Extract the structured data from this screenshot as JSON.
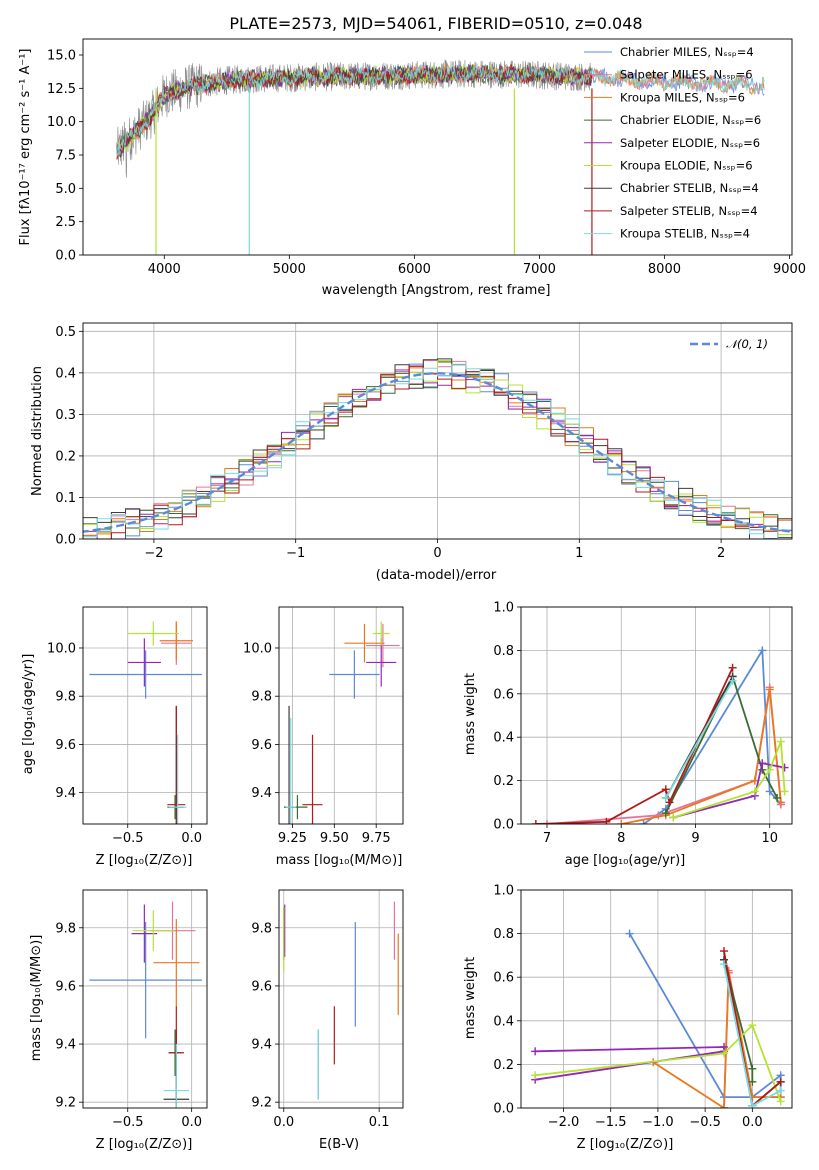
{
  "colors": {
    "chabrier_miles": "#5b8bd6",
    "salpeter_miles": "#e7739c",
    "kroupa_miles": "#e8781f",
    "chabrier_elodie": "#3a6b30",
    "salpeter_elodie": "#9527b8",
    "kroupa_elodie": "#b6e234",
    "chabrier_stelib": "#3c3c3c",
    "salpeter_stelib": "#b21a1a",
    "kroupa_stelib": "#79dbe0",
    "spectrum": "#888888",
    "gauss": "#5b8bd6",
    "grid": "#b0b0b0"
  },
  "chart_data": [
    {
      "id": "spectrum",
      "type": "line",
      "title": "PLATE=2573, MJD=54061, FIBERID=0510, z=0.048",
      "xlabel": "wavelength [Angstrom, rest frame]",
      "ylabel": "Flux [fλ10⁻¹⁷ erg cm⁻² s⁻¹ A⁻¹]",
      "xlim": [
        3350,
        9020
      ],
      "ylim": [
        0,
        16.2
      ],
      "xticks": [
        "4000",
        "5000",
        "6000",
        "7000",
        "8000",
        "9000"
      ],
      "yticks": [
        "0.0",
        "2.5",
        "5.0",
        "7.5",
        "10.0",
        "12.5",
        "15.0"
      ],
      "grid": false,
      "legend_position": "upper right",
      "legend": [
        "Chabrier MILES, Nₛₛₚ=4",
        "Salpeter MILES, Nₛₛₚ=6",
        "Kroupa MILES, Nₛₛₚ=6",
        "Chabrier ELODIE, Nₛₛₚ=6",
        "Salpeter ELODIE, Nₛₛₚ=6",
        "Kroupa ELODIE, Nₛₛₚ=6",
        "Chabrier STELIB, Nₛₛₚ=4",
        "Salpeter STELIB, Nₛₛₚ=4",
        "Kroupa STELIB, Nₛₛₚ=4"
      ],
      "continuum": {
        "x": [
          3620,
          3700,
          3800,
          3900,
          4000,
          4100,
          4200,
          4300,
          4500,
          4700,
          5000,
          5500,
          6000,
          6500,
          7000,
          7500,
          7800,
          8000,
          8400,
          8800
        ],
        "y": [
          7.8,
          8.5,
          9.5,
          10.5,
          12.0,
          12.3,
          12.6,
          12.8,
          13.1,
          13.2,
          13.3,
          13.4,
          13.5,
          13.6,
          13.5,
          13.3,
          13.1,
          13.0,
          12.9,
          12.7
        ]
      },
      "dips": [
        {
          "x": 3934,
          "y": 0.0
        },
        {
          "x": 4680,
          "y": 0.0
        },
        {
          "x": 6800,
          "y": 0.0
        },
        {
          "x": 7420,
          "y": 0.0
        }
      ]
    },
    {
      "id": "residuals",
      "type": "line",
      "xlabel": "(data-model)/error",
      "ylabel": "Normed distribution",
      "xlim": [
        -2.5,
        2.5
      ],
      "ylim": [
        0,
        0.52
      ],
      "xticks": [
        "−2",
        "−1",
        "0",
        "1",
        "2"
      ],
      "yticks": [
        "0.0",
        "0.1",
        "0.2",
        "0.3",
        "0.4",
        "0.5"
      ],
      "grid": true,
      "legend_position": "upper right",
      "legend": [
        "𝒩(0, 1)"
      ],
      "bin_width": 0.1
    },
    {
      "id": "z_age",
      "type": "scatter",
      "xlabel": "Z [log₁₀(Z/Z⊙)]",
      "ylabel": "age  [log₁₀(age/yr)]",
      "xlim": [
        -0.85,
        0.12
      ],
      "ylim": [
        9.27,
        10.17
      ],
      "xticks": [
        "−0.5",
        "0.0"
      ],
      "yticks": [
        "9.4",
        "9.6",
        "9.8",
        "10.0"
      ],
      "grid": true,
      "points": [
        {
          "s": "chabrier_miles",
          "x": -0.36,
          "y": 9.89,
          "xe": 0.44,
          "ye": 0.1
        },
        {
          "s": "salpeter_miles",
          "x": -0.12,
          "y": 10.02,
          "xe": 0.12,
          "ye": 0.09
        },
        {
          "s": "kroupa_miles",
          "x": -0.12,
          "y": 10.03,
          "xe": 0.13,
          "ye": 0.08
        },
        {
          "s": "chabrier_elodie",
          "x": -0.13,
          "y": 9.34,
          "xe": 0.06,
          "ye": 0.05
        },
        {
          "s": "salpeter_elodie",
          "x": -0.37,
          "y": 9.94,
          "xe": 0.13,
          "ye": 0.1
        },
        {
          "s": "kroupa_elodie",
          "x": -0.3,
          "y": 10.06,
          "xe": 0.2,
          "ye": 0.05
        },
        {
          "s": "chabrier_stelib",
          "x": -0.12,
          "y": 9.34,
          "xe": 0.06,
          "ye": 0.42
        },
        {
          "s": "salpeter_stelib",
          "x": -0.12,
          "y": 9.35,
          "xe": 0.07,
          "ye": 0.41
        },
        {
          "s": "kroupa_stelib",
          "x": -0.11,
          "y": 9.34,
          "xe": 0.07,
          "ye": 0.3
        }
      ]
    },
    {
      "id": "mass_age",
      "type": "scatter",
      "xlabel": "mass [log₁₀(M/M⊙)]",
      "ylabel": "",
      "xlim": [
        9.17,
        9.91
      ],
      "ylim": [
        9.27,
        10.17
      ],
      "xticks": [
        "9.25",
        "9.50",
        "9.75"
      ],
      "yticks": [
        "9.4",
        "9.6",
        "9.8",
        "10.0"
      ],
      "grid": true,
      "points": [
        {
          "s": "chabrier_miles",
          "x": 9.62,
          "y": 9.89,
          "xe": 0.15,
          "ye": 0.1
        },
        {
          "s": "salpeter_miles",
          "x": 9.79,
          "y": 10.01,
          "xe": 0.1,
          "ye": 0.09
        },
        {
          "s": "kroupa_miles",
          "x": 9.68,
          "y": 10.02,
          "xe": 0.12,
          "ye": 0.08
        },
        {
          "s": "chabrier_elodie",
          "x": 9.28,
          "y": 9.34,
          "xe": 0.06,
          "ye": 0.05
        },
        {
          "s": "salpeter_elodie",
          "x": 9.78,
          "y": 9.94,
          "xe": 0.09,
          "ye": 0.1
        },
        {
          "s": "kroupa_elodie",
          "x": 9.78,
          "y": 10.06,
          "xe": 0.05,
          "ye": 0.05
        },
        {
          "s": "chabrier_stelib",
          "x": 9.23,
          "y": 9.34,
          "xe": 0.03,
          "ye": 0.42
        },
        {
          "s": "salpeter_stelib",
          "x": 9.37,
          "y": 9.35,
          "xe": 0.06,
          "ye": 0.29
        },
        {
          "s": "kroupa_stelib",
          "x": 9.24,
          "y": 9.34,
          "xe": 0.03,
          "ye": 0.37
        }
      ]
    },
    {
      "id": "age_weight",
      "type": "line",
      "xlabel": "age  [log₁₀(age/yr)]",
      "ylabel": "mass weight",
      "xlim": [
        6.65,
        10.3
      ],
      "ylim": [
        0,
        1.0
      ],
      "xticks": [
        "7",
        "8",
        "9",
        "10"
      ],
      "yticks": [
        "0.0",
        "0.2",
        "0.4",
        "0.6",
        "0.8",
        "1.0"
      ],
      "grid": true,
      "series": [
        {
          "s": "chabrier_miles",
          "x": [
            8.3,
            8.6,
            9.9,
            10.0,
            10.15
          ],
          "y": [
            0.0,
            0.07,
            0.8,
            0.15,
            0.09
          ]
        },
        {
          "s": "salpeter_miles",
          "x": [
            7.0,
            8.5,
            9.8,
            10.0,
            10.15
          ],
          "y": [
            0.0,
            0.04,
            0.2,
            0.63,
            0.09
          ]
        },
        {
          "s": "kroupa_miles",
          "x": [
            8.0,
            8.6,
            9.8,
            10.0,
            10.15
          ],
          "y": [
            0.0,
            0.04,
            0.2,
            0.62,
            0.1
          ]
        },
        {
          "s": "chabrier_elodie",
          "x": [
            8.6,
            9.5,
            9.9,
            10.1
          ],
          "y": [
            0.05,
            0.68,
            0.25,
            0.12
          ]
        },
        {
          "s": "salpeter_elodie",
          "x": [
            8.7,
            9.8,
            9.9,
            10.2
          ],
          "y": [
            0.03,
            0.13,
            0.28,
            0.26
          ]
        },
        {
          "s": "kroupa_elodie",
          "x": [
            8.7,
            9.8,
            10.0,
            10.15,
            10.2
          ],
          "y": [
            0.03,
            0.15,
            0.25,
            0.38,
            0.15
          ]
        },
        {
          "s": "chabrier_stelib",
          "x": [
            8.6,
            9.5
          ],
          "y": [
            0.12,
            0.68
          ]
        },
        {
          "s": "salpeter_stelib",
          "x": [
            6.85,
            7.8,
            8.6,
            8.65,
            9.5
          ],
          "y": [
            0.0,
            0.01,
            0.16,
            0.1,
            0.72
          ]
        },
        {
          "s": "kroupa_stelib",
          "x": [
            8.6,
            9.5
          ],
          "y": [
            0.12,
            0.66
          ]
        }
      ]
    },
    {
      "id": "z_mass",
      "type": "scatter",
      "xlabel": "Z [log₁₀(Z/Z⊙)]",
      "ylabel": "mass [log₁₀(M/M⊙)]",
      "xlim": [
        -0.85,
        0.12
      ],
      "ylim": [
        9.18,
        9.93
      ],
      "xticks": [
        "−0.5",
        "0.0"
      ],
      "yticks": [
        "9.2",
        "9.4",
        "9.6",
        "9.8"
      ],
      "grid": true,
      "points": [
        {
          "s": "chabrier_miles",
          "x": -0.36,
          "y": 9.62,
          "xe": 0.44,
          "ye": 0.2
        },
        {
          "s": "salpeter_miles",
          "x": -0.15,
          "y": 9.79,
          "xe": 0.18,
          "ye": 0.1
        },
        {
          "s": "kroupa_miles",
          "x": -0.12,
          "y": 9.68,
          "xe": 0.18,
          "ye": 0.15
        },
        {
          "s": "chabrier_elodie",
          "x": -0.13,
          "y": 9.37,
          "xe": 0.05,
          "ye": 0.08
        },
        {
          "s": "salpeter_elodie",
          "x": -0.37,
          "y": 9.78,
          "xe": 0.1,
          "ye": 0.1
        },
        {
          "s": "kroupa_elodie",
          "x": -0.3,
          "y": 9.79,
          "xe": 0.16,
          "ye": 0.07
        },
        {
          "s": "chabrier_stelib",
          "x": -0.12,
          "y": 9.21,
          "xe": 0.1,
          "ye": 0.24
        },
        {
          "s": "salpeter_stelib",
          "x": -0.12,
          "y": 9.37,
          "xe": 0.06,
          "ye": 0.16
        },
        {
          "s": "kroupa_stelib",
          "x": -0.12,
          "y": 9.24,
          "xe": 0.1,
          "ye": 0.16
        }
      ]
    },
    {
      "id": "ebv_mass",
      "type": "scatter",
      "xlabel": "E(B-V)",
      "ylabel": "",
      "xlim": [
        -0.005,
        0.125
      ],
      "ylim": [
        9.18,
        9.93
      ],
      "xticks": [
        "0.0",
        "0.1"
      ],
      "yticks": [
        "9.2",
        "9.4",
        "9.6",
        "9.8"
      ],
      "grid": true,
      "points": [
        {
          "s": "chabrier_miles",
          "x": 0.075,
          "y": 9.64,
          "ye": 0.18
        },
        {
          "s": "salpeter_miles",
          "x": 0.116,
          "y": 9.79,
          "ye": 0.1
        },
        {
          "s": "kroupa_miles",
          "x": 0.12,
          "y": 9.64,
          "ye": 0.14
        },
        {
          "s": "chabrier_elodie",
          "x": 0.0,
          "y": 9.78,
          "ye": 0.09
        },
        {
          "s": "salpeter_elodie",
          "x": 0.001,
          "y": 9.79,
          "ye": 0.09
        },
        {
          "s": "kroupa_elodie",
          "x": 0.0,
          "y": 9.76,
          "ye": 0.11
        },
        {
          "s": "chabrier_stelib",
          "x": 0.036,
          "y": 9.33,
          "ye": 0.12
        },
        {
          "s": "salpeter_stelib",
          "x": 0.053,
          "y": 9.43,
          "ye": 0.1
        },
        {
          "s": "kroupa_stelib",
          "x": 0.036,
          "y": 9.33,
          "ye": 0.12
        }
      ]
    },
    {
      "id": "z_weight",
      "type": "line",
      "xlabel": "Z [log₁₀(Z/Z⊙)]",
      "ylabel": "mass weight",
      "xlim": [
        -2.45,
        0.42
      ],
      "ylim": [
        0,
        1.0
      ],
      "xticks": [
        "−2.0",
        "−1.5",
        "−1.0",
        "−0.5",
        "0.0"
      ],
      "yticks": [
        "0.0",
        "0.2",
        "0.4",
        "0.6",
        "0.8",
        "1.0"
      ],
      "grid": true,
      "series": [
        {
          "s": "chabrier_miles",
          "x": [
            -1.3,
            -0.3,
            0.0,
            0.3,
            0.3
          ],
          "y": [
            0.8,
            0.05,
            0.05,
            0.15,
            0.05
          ]
        },
        {
          "s": "salpeter_miles",
          "x": [
            -0.3,
            -0.25,
            0.0,
            0.3
          ],
          "y": [
            0.0,
            0.63,
            0.05,
            0.05
          ]
        },
        {
          "s": "kroupa_miles",
          "x": [
            -1.05,
            -0.3,
            -0.25,
            0.0,
            0.3
          ],
          "y": [
            0.21,
            0.0,
            0.62,
            0.05,
            0.05
          ]
        },
        {
          "s": "chabrier_elodie",
          "x": [
            -0.3,
            0.0,
            0.0
          ],
          "y": [
            0.68,
            0.18,
            0.12
          ]
        },
        {
          "s": "salpeter_elodie",
          "x": [
            -2.3,
            -0.3,
            -0.3,
            -2.3
          ],
          "y": [
            0.13,
            0.26,
            0.28,
            0.26
          ]
        },
        {
          "s": "kroupa_elodie",
          "x": [
            -2.3,
            -0.3,
            0.0,
            0.3
          ],
          "y": [
            0.15,
            0.25,
            0.38,
            0.03
          ]
        },
        {
          "s": "chabrier_stelib",
          "x": [
            -0.3,
            0.0,
            0.3
          ],
          "y": [
            0.68,
            0.01,
            0.12
          ]
        },
        {
          "s": "salpeter_stelib",
          "x": [
            -0.3,
            0.0,
            0.3
          ],
          "y": [
            0.72,
            0.01,
            0.12
          ]
        },
        {
          "s": "kroupa_stelib",
          "x": [
            -0.3,
            0.0,
            0.3
          ],
          "y": [
            0.66,
            0.01,
            0.08
          ]
        }
      ]
    }
  ]
}
